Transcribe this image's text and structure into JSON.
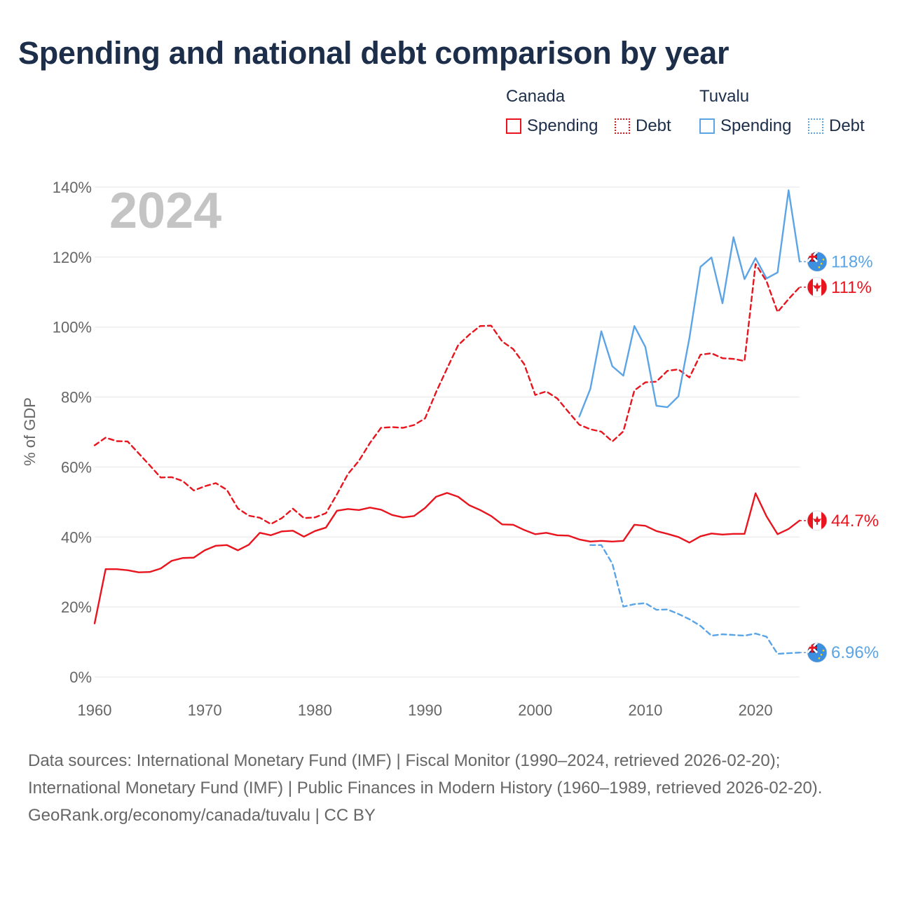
{
  "chart_data": {
    "type": "line",
    "title": "Spending and national debt comparison by year",
    "year_watermark": "2024",
    "ylabel": "% of GDP",
    "xlabel": "",
    "xlim": [
      1960,
      2024
    ],
    "ylim": [
      0,
      140
    ],
    "y_ticks": [
      0,
      20,
      40,
      60,
      80,
      100,
      120,
      140
    ],
    "y_tick_labels": [
      "0%",
      "20%",
      "40%",
      "60%",
      "80%",
      "100%",
      "120%",
      "140%"
    ],
    "x_ticks": [
      1960,
      1970,
      1980,
      1990,
      2000,
      2010,
      2020
    ],
    "x_tick_labels": [
      "1960",
      "1970",
      "1980",
      "1990",
      "2000",
      "2010",
      "2020"
    ],
    "grid": true,
    "legend_position": "top-right",
    "legend": {
      "countries": [
        {
          "name": "Canada",
          "spending_label": "Spending",
          "debt_label": "Debt"
        },
        {
          "name": "Tuvalu",
          "spending_label": "Spending",
          "debt_label": "Debt"
        }
      ]
    },
    "series": [
      {
        "name": "Canada Spending",
        "country": "Canada",
        "measure": "Spending",
        "color": "#e8141e",
        "dash": "solid",
        "start_year": 1960,
        "values": [
          15.3,
          30.8,
          30.8,
          30.5,
          29.9,
          30.0,
          31.0,
          33.2,
          34.0,
          34.1,
          36.2,
          37.5,
          37.7,
          36.2,
          37.8,
          41.2,
          40.5,
          41.6,
          41.8,
          40.1,
          41.7,
          42.7,
          47.5,
          48.0,
          47.7,
          48.4,
          47.8,
          46.3,
          45.6,
          46.0,
          48.3,
          51.5,
          52.6,
          51.5,
          49.1,
          47.7,
          46.0,
          43.6,
          43.5,
          42.0,
          40.8,
          41.2,
          40.5,
          40.4,
          39.3,
          38.7,
          38.9,
          38.7,
          38.9,
          43.5,
          43.2,
          41.7,
          40.9,
          40.0,
          38.4,
          40.2,
          41.0,
          40.7,
          40.9,
          40.9,
          52.5,
          45.9,
          40.8,
          42.3,
          44.7
        ],
        "end_label": "44.7%"
      },
      {
        "name": "Canada Debt",
        "country": "Canada",
        "measure": "Debt",
        "color": "#e8141e",
        "dash": "dashed",
        "start_year": 1960,
        "values": [
          66.2,
          68.4,
          67.4,
          67.3,
          63.9,
          60.5,
          57.0,
          57.1,
          56.0,
          53.3,
          54.5,
          55.4,
          53.5,
          48.2,
          46.1,
          45.5,
          43.7,
          45.4,
          48.1,
          45.4,
          45.6,
          46.8,
          52.2,
          58.0,
          61.8,
          66.9,
          71.2,
          71.4,
          71.2,
          72.0,
          73.9,
          81.4,
          88.2,
          94.8,
          97.8,
          100.3,
          100.4,
          95.9,
          93.7,
          89.4,
          80.6,
          81.6,
          79.6,
          75.8,
          72.1,
          70.8,
          70.1,
          67.3,
          70.2,
          81.9,
          84.2,
          84.4,
          87.5,
          87.9,
          85.6,
          92.1,
          92.5,
          91.1,
          90.9,
          90.3,
          118.0,
          113.1,
          104.3,
          108.0,
          111.4
        ],
        "end_label": "111%"
      },
      {
        "name": "Tuvalu Spending",
        "country": "Tuvalu",
        "measure": "Spending",
        "color": "#5ba4e5",
        "dash": "solid",
        "start_year": 2004,
        "values": [
          74.4,
          82.3,
          98.8,
          88.8,
          86.1,
          100.3,
          94.3,
          77.5,
          77.1,
          80.2,
          96.9,
          117.2,
          119.9,
          106.8,
          125.7,
          113.7,
          119.7,
          113.9,
          115.6,
          139.1,
          118.7
        ],
        "end_label": "118%"
      },
      {
        "name": "Tuvalu Debt",
        "country": "Tuvalu",
        "measure": "Debt",
        "color": "#5ba4e5",
        "dash": "dashed",
        "start_year": 2005,
        "values": [
          37.7,
          37.7,
          32.4,
          20.1,
          20.8,
          21.1,
          19.2,
          19.3,
          18.0,
          16.5,
          14.6,
          11.8,
          12.2,
          12.0,
          11.8,
          12.4,
          11.5,
          6.6,
          6.8,
          6.96
        ],
        "end_label": "6.96%"
      }
    ]
  },
  "colors": {
    "canada": "#e8141e",
    "tuvalu": "#5ba4e5",
    "title": "#1c2e4a",
    "axis_text": "#666666",
    "grid": "#e6e6e6",
    "watermark": "#c4c4c4"
  },
  "source": {
    "line1": "Data sources: International Monetary Fund (IMF) | Fiscal Monitor (1990–2024, retrieved 2026-02-20); International Monetary Fund (IMF) | Public Finances in Modern History (1960–1989, retrieved 2026-02-20).",
    "line2": "GeoRank.org/economy/canada/tuvalu | CC BY"
  }
}
